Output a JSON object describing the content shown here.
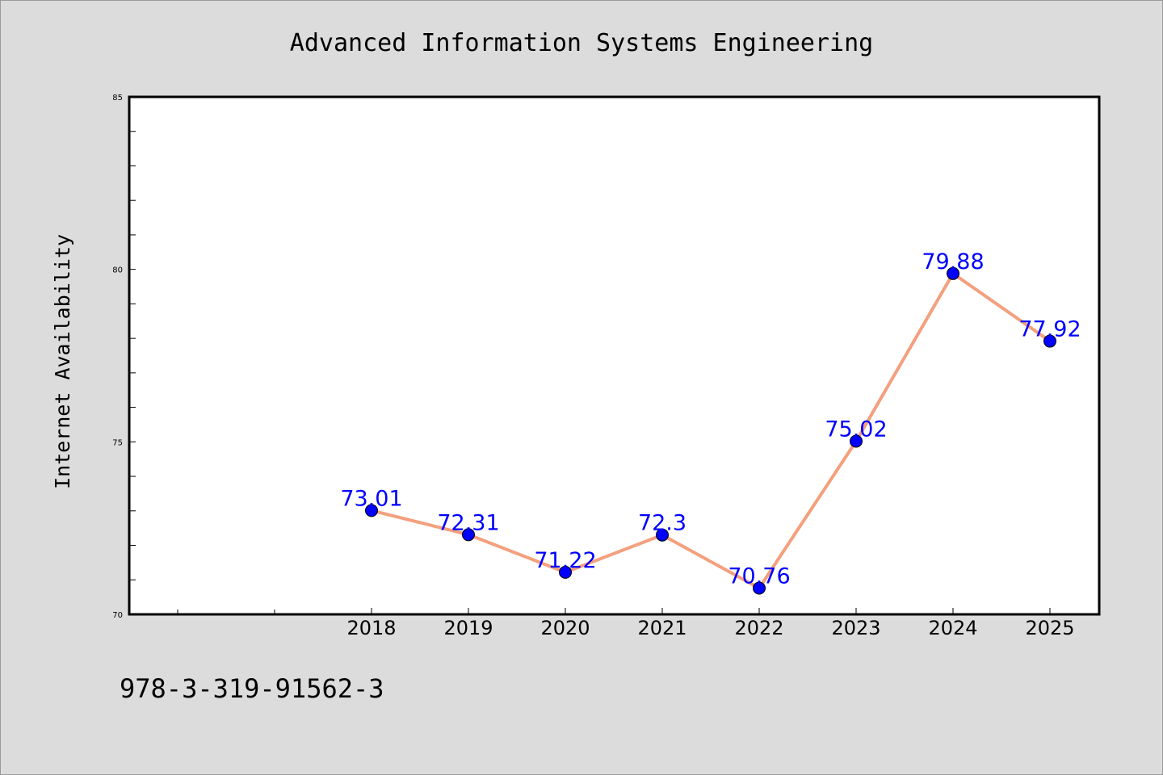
{
  "chart_data": {
    "type": "line",
    "title": "Advanced Information Systems Engineering",
    "xlabel": "",
    "ylabel": "Internet Availability",
    "categories": [
      "2018",
      "2019",
      "2020",
      "2021",
      "2022",
      "2023",
      "2024",
      "2025"
    ],
    "series": [
      {
        "values": [
          73.01,
          72.31,
          71.22,
          72.3,
          70.76,
          75.02,
          79.88,
          77.92
        ]
      }
    ],
    "data_labels": [
      "73.01",
      "72.31",
      "71.22",
      "72.3",
      "70.76",
      "75.02",
      "79.88",
      "77.92"
    ],
    "ylim": [
      70,
      85
    ],
    "yticks": [
      "70",
      "75",
      "80",
      "85"
    ],
    "grid": false,
    "colors": {
      "line": "#f4a07e",
      "marker": "#0000ff",
      "label": "#0000ff",
      "background": "#dcdcdc",
      "plot_area": "#ffffff"
    }
  },
  "footer": {
    "isbn": "978-3-319-91562-3"
  }
}
